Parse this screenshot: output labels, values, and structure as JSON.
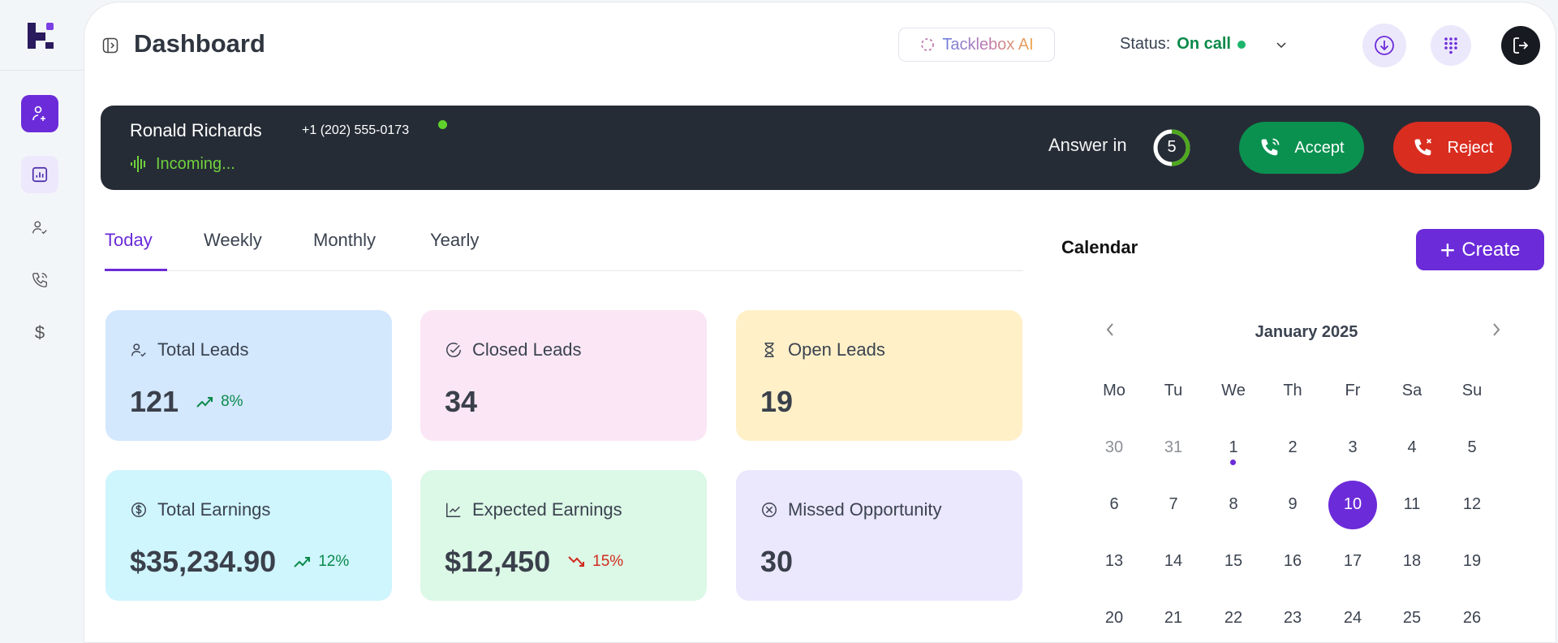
{
  "header": {
    "title": "Dashboard",
    "ai_button": "Tacklebox AI",
    "status_label": "Status:",
    "status_value": "On call"
  },
  "call": {
    "name": "Ronald Richards",
    "phone": "+1 (202) 555-0173",
    "state": "Incoming...",
    "answer_label": "Answer in",
    "countdown": "5",
    "accept": "Accept",
    "reject": "Reject"
  },
  "tabs": [
    {
      "label": "Today",
      "active": true
    },
    {
      "label": "Weekly"
    },
    {
      "label": "Monthly"
    },
    {
      "label": "Yearly"
    }
  ],
  "cards": [
    {
      "label": "Total Leads",
      "value": "121",
      "delta": "8%",
      "trend": "up",
      "bg": "#d3e7fd",
      "icon": "users-check-icon"
    },
    {
      "label": "Closed Leads",
      "value": "34",
      "bg": "#fbe6f5",
      "icon": "check-circle-icon"
    },
    {
      "label": "Open Leads",
      "value": "19",
      "bg": "#fff0c8",
      "icon": "hourglass-icon"
    },
    {
      "label": "Total Earnings",
      "value": "$35,234.90",
      "delta": "12%",
      "trend": "up",
      "bg": "#cff5fd",
      "icon": "dollar-circle-icon"
    },
    {
      "label": "Expected Earnings",
      "value": "$12,450",
      "delta": "15%",
      "trend": "down",
      "bg": "#dcf8e6",
      "icon": "chart-line-icon"
    },
    {
      "label": "Missed Opportunity",
      "value": "30",
      "bg": "#ebe7fd",
      "icon": "x-circle-icon"
    }
  ],
  "calendar": {
    "title": "Calendar",
    "create": "Create",
    "month": "January 2025",
    "weekdays": [
      "Mo",
      "Tu",
      "We",
      "Th",
      "Fr",
      "Sa",
      "Su"
    ],
    "weeks": [
      [
        "30",
        "31",
        "1",
        "2",
        "3",
        "4",
        "5"
      ],
      [
        "6",
        "7",
        "8",
        "9",
        "10",
        "11",
        "12"
      ],
      [
        "13",
        "14",
        "15",
        "16",
        "17",
        "18",
        "19"
      ],
      [
        "20",
        "21",
        "22",
        "23",
        "24",
        "25",
        "26"
      ]
    ],
    "muted": [
      "30",
      "31"
    ],
    "selected": "10",
    "event_days": [
      "1"
    ]
  },
  "colors": {
    "accent": "#6b2bd9",
    "accept": "#0a9150",
    "reject": "#d92d20",
    "callbar": "#262c36"
  }
}
